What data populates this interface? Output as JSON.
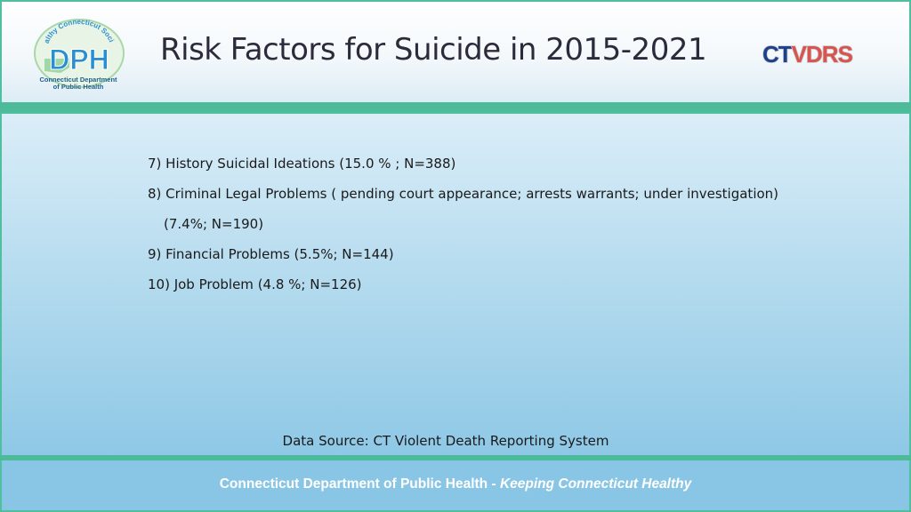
{
  "header": {
    "title": "Risk Factors for Suicide in 2015-2021",
    "dph_logo": {
      "letters": "DPH",
      "arc_text": "Healthy Connecticut Society",
      "caption_line1": "Connecticut Department",
      "caption_line2": "of Public Health"
    },
    "ctvdrs_logo": {
      "part1": "CT",
      "part2": "VDRS"
    }
  },
  "content": {
    "lines": [
      "7) History Suicidal Ideations (15.0 % ; N=388)",
      "8) Criminal Legal Problems ( pending court appearance; arrests warrants; under investigation)",
      "(7.4%; N=190)",
      "9)   Financial Problems (5.5%; N=144)",
      "10) Job Problem (4.8 %; N=126)"
    ]
  },
  "source": "Data Source: CT Violent Death Reporting System",
  "footer": {
    "org": "Connecticut Department of Public Health",
    "separator": " - ",
    "tagline": "Keeping Connecticut Healthy"
  },
  "colors": {
    "accent_green": "#4dbb9a",
    "body_blue": "#8ec8e6",
    "footer_blue": "#89c6e5",
    "logo_blue": "#2a8fd0",
    "ctvdrs_red": "#d9534f"
  }
}
